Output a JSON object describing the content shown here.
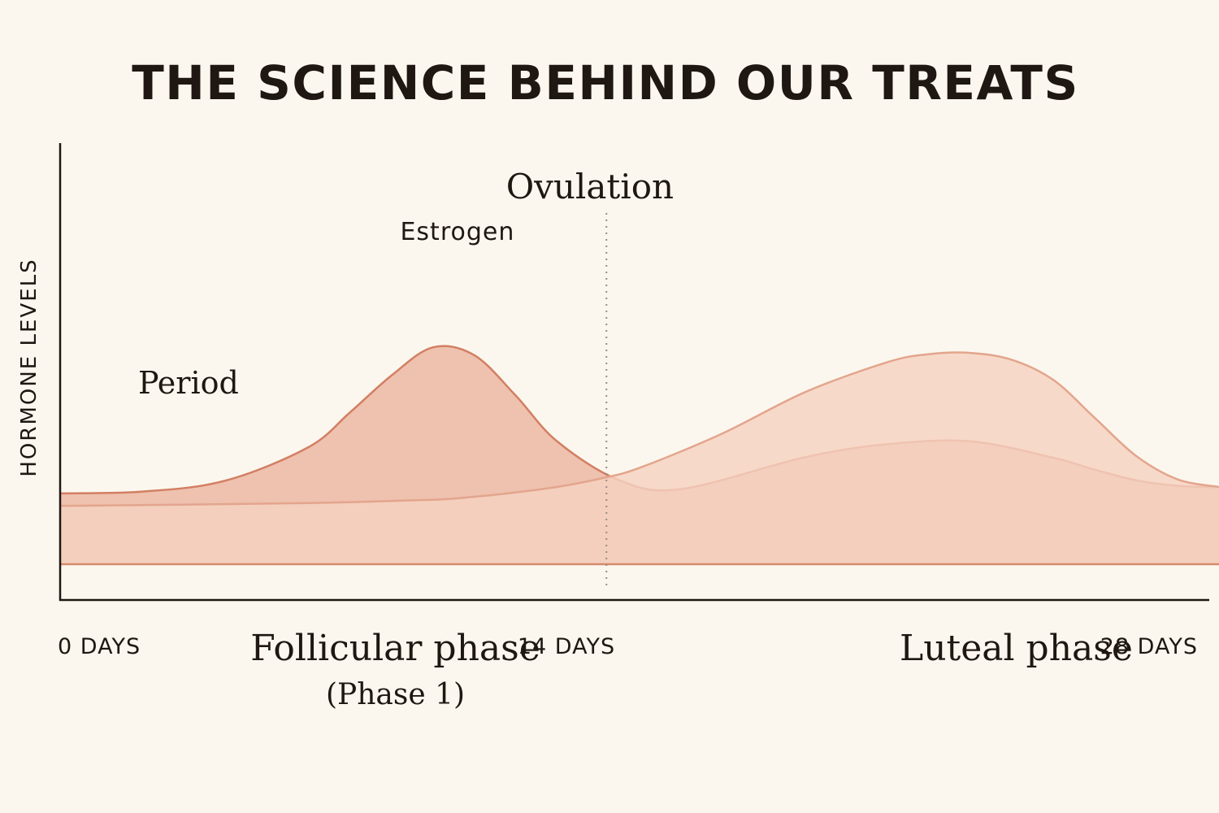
{
  "chart_data": {
    "type": "area",
    "title": "THE SCIENCE BEHIND OUR TREATS",
    "ylabel": "HORMONE LEVELS",
    "xlabel": "",
    "xlim": [
      0,
      28
    ],
    "ylim": [
      0,
      100
    ],
    "grid": false,
    "legend": "none",
    "x_ticks": [
      {
        "x": 0,
        "label": "0 DAYS"
      },
      {
        "x": 14,
        "label": "14 DAYS"
      },
      {
        "x": 28,
        "label": "28 DAYS"
      }
    ],
    "phase_labels": [
      {
        "x": 8.1,
        "label": "Follicular phase",
        "sub": "(Phase 1)"
      },
      {
        "x": 23.1,
        "label": "Luteal phase",
        "sub": ""
      }
    ],
    "annotations": [
      {
        "text": "Period",
        "x": 3.1,
        "y": 42
      },
      {
        "text": "Estrogen",
        "x": 9.6,
        "y": 74
      },
      {
        "text": "Ovulation",
        "x": 12.8,
        "y": 84
      }
    ],
    "ovulation_day": 13.2,
    "series": [
      {
        "id": "upper",
        "x": [
          0,
          2,
          4,
          6,
          7,
          8,
          9,
          10,
          11,
          12,
          13.5,
          15,
          18,
          20,
          22,
          24,
          25,
          26,
          27,
          28
        ],
        "y": [
          23.3,
          23.9,
          27.5,
          38.5,
          49.9,
          62,
          71.3,
          68.8,
          55.6,
          40.5,
          27.7,
          24.7,
          35.2,
          39.5,
          40.4,
          35,
          31.1,
          27.6,
          25.8,
          25.3
        ],
        "fill": "#ebb4a1",
        "stroke": "#d27f63"
      },
      {
        "id": "lower",
        "x": [
          0,
          3,
          6,
          9,
          10,
          11,
          12,
          13,
          14,
          16,
          18,
          20,
          21,
          22,
          23,
          24,
          25,
          26,
          27,
          28
        ],
        "y": [
          19.2,
          19.6,
          20.1,
          21.2,
          22.2,
          23.6,
          25.4,
          28,
          31.7,
          43,
          56.6,
          66.5,
          69.1,
          69.5,
          67.2,
          60.6,
          48.1,
          35.6,
          27.9,
          25.4
        ],
        "fill": "#f5d2c1",
        "stroke": "#e3a58d"
      }
    ]
  }
}
